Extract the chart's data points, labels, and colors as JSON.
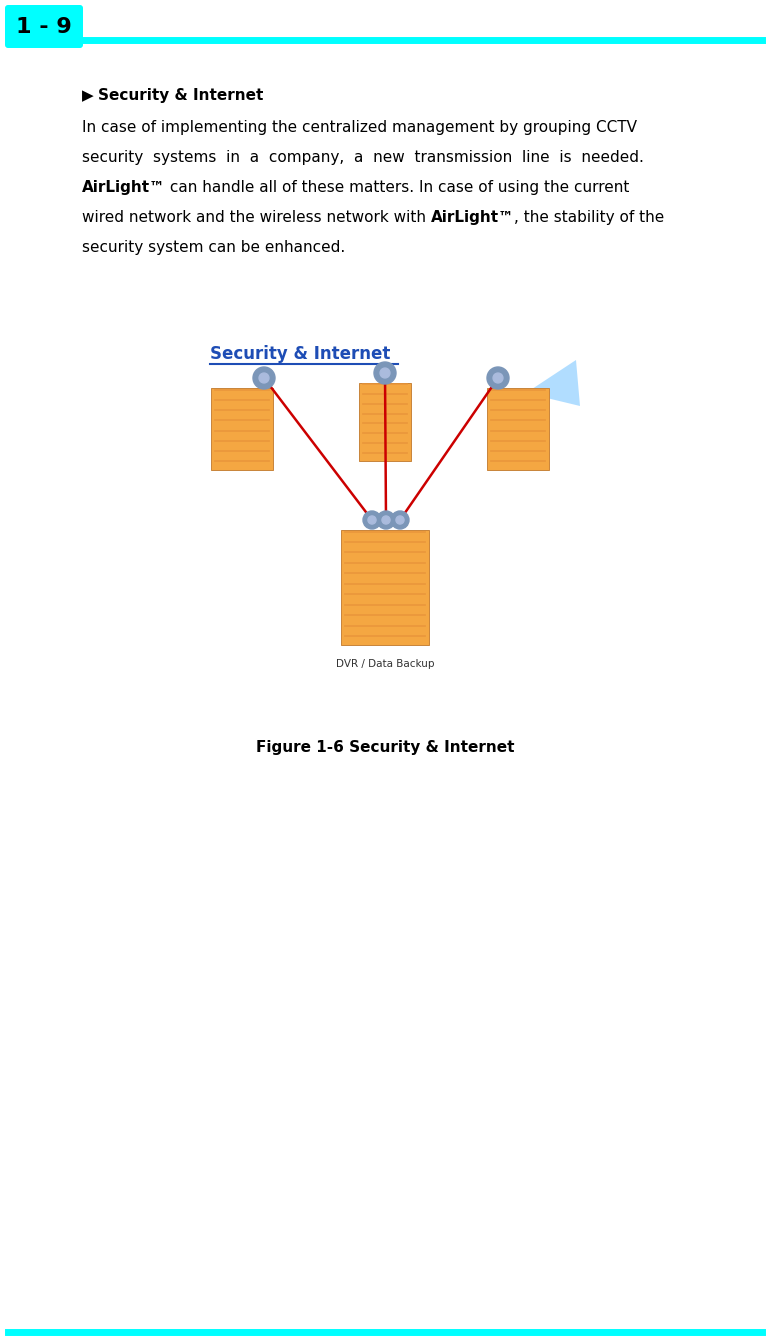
{
  "page_label": "1 - 9",
  "header_bg_color": "#00FFFF",
  "header_line_color": "#00FFFF",
  "header_text_color": "#000000",
  "header_fontsize": 16,
  "section_title_fontsize": 11,
  "body_fontsize": 11,
  "figure_title": "Security & Internet",
  "figure_title_color": "#1E4DB5",
  "figure_caption": "Figure 1-6 Security & Internet",
  "figure_caption_fontsize": 11,
  "bg_color": "#FFFFFF",
  "footer_line_color": "#00FFFF",
  "line_color_red": "#CC0000",
  "dvr_label": "DVR / Data Backup",
  "building_color": "#F4A742",
  "building_stripe_color": "#E8953A",
  "building_edge_color": "#C8843A",
  "antenna_color": "#7B96B8",
  "antenna_inner_color": "#AABBDD",
  "beam_color": "#88CCFF"
}
